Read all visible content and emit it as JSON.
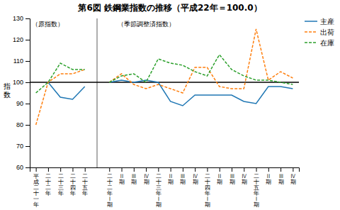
{
  "chart_data": {
    "type": "line",
    "title": "第6図  鉄鋼業指数の推移（平成22年＝100.0）",
    "y_label": "指\n数",
    "categories": [
      "平成二十一年",
      "二十二年",
      "二十三年",
      "二十四年",
      "二十五年",
      null,
      "二十二年Ⅰ期",
      "Ⅱ期",
      "Ⅲ期",
      "Ⅳ期",
      "二十三年Ⅰ期",
      "Ⅱ期",
      "Ⅲ期",
      "Ⅳ期",
      "二十四年Ⅰ期",
      "Ⅱ期",
      "Ⅲ期",
      "Ⅳ期",
      "二十五年Ⅰ期",
      "Ⅱ期",
      "Ⅲ期",
      "Ⅳ期"
    ],
    "series": [
      {
        "name": "主産",
        "line_style": "solid",
        "values": [
          null,
          100,
          93,
          92,
          98,
          null,
          100,
          101,
          100,
          101,
          100,
          91,
          89,
          94,
          94,
          94,
          94,
          91,
          90,
          98,
          98,
          97
        ]
      },
      {
        "name": "出荷",
        "line_style": "dashed",
        "values": [
          80,
          100,
          104,
          104,
          106,
          null,
          100,
          104,
          99,
          97,
          99,
          97,
          95,
          107,
          107,
          98,
          97,
          97,
          125,
          101,
          105,
          102
        ]
      },
      {
        "name": "在庫",
        "line_style": "dashed",
        "values": [
          95,
          100,
          109,
          106,
          106,
          null,
          100,
          103,
          104,
          100,
          111,
          109,
          108,
          105,
          103,
          113,
          106,
          103,
          101,
          101,
          100,
          99
        ]
      }
    ],
    "hline": 100,
    "annotations": [
      "（原指数）",
      "（季節調整済指数）"
    ],
    "ylim": [
      60,
      130
    ],
    "yticks": [
      60,
      70,
      80,
      90,
      100,
      110,
      120,
      130
    ],
    "legend": "upper right",
    "grid": false
  }
}
